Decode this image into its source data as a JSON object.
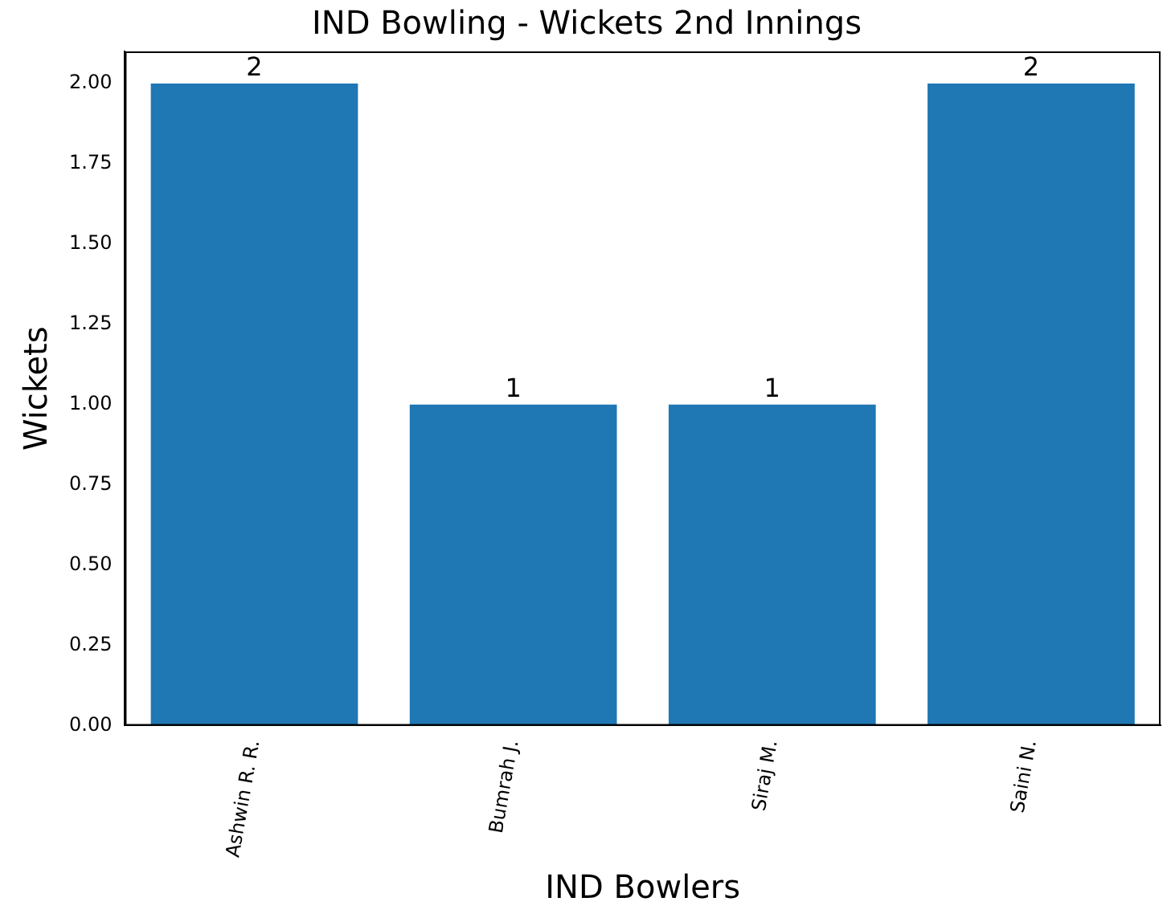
{
  "chart_data": {
    "type": "bar",
    "title": "IND Bowling - Wickets 2nd Innings",
    "xlabel": "IND Bowlers",
    "ylabel": "Wickets",
    "categories": [
      "Ashwin R. R.",
      "Bumrah J.",
      "Siraj M.",
      "Saini N."
    ],
    "values": [
      2,
      1,
      1,
      2
    ],
    "color": "#1f77b4",
    "ylim": [
      0,
      2.1
    ],
    "yticks": [
      {
        "value": 0,
        "label": "0.00"
      },
      {
        "value": 0.25,
        "label": "0.25"
      },
      {
        "value": 0.5,
        "label": "0.50"
      },
      {
        "value": 0.75,
        "label": "0.75"
      },
      {
        "value": 1,
        "label": "1.00"
      },
      {
        "value": 1.25,
        "label": "1.25"
      },
      {
        "value": 1.5,
        "label": "1.50"
      },
      {
        "value": 1.75,
        "label": "1.75"
      },
      {
        "value": 2,
        "label": "2.00"
      }
    ],
    "data_labels": true
  }
}
